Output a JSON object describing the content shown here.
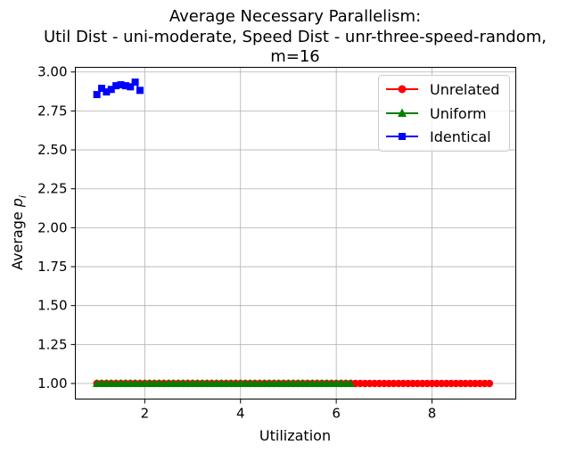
{
  "chart_data": {
    "type": "line",
    "title_lines": [
      "Average Necessary Parallelism:",
      "Util Dist - uni-moderate, Speed Dist - unr-three-speed-random,",
      "m=16"
    ],
    "xlabel": "Utilization",
    "ylabel_main": "Average ",
    "ylabel_var": "p",
    "ylabel_sub": "i",
    "xlim": [
      0.55,
      9.75
    ],
    "ylim": [
      0.9,
      3.03
    ],
    "xticks": [
      2,
      4,
      6,
      8
    ],
    "xtick_labels": [
      "2",
      "4",
      "6",
      "8"
    ],
    "yticks": [
      1.0,
      1.25,
      1.5,
      1.75,
      2.0,
      2.25,
      2.5,
      2.75,
      3.0
    ],
    "ytick_labels": [
      "1.00",
      "1.25",
      "1.50",
      "1.75",
      "2.00",
      "2.25",
      "2.50",
      "2.75",
      "3.00"
    ],
    "grid": true,
    "legend_position": "top-right",
    "series": [
      {
        "name": "Unrelated",
        "color": "#ff0000",
        "marker": "circle",
        "x_start": 1.0,
        "x_step": 0.1,
        "x_end": 9.2,
        "y_constant": 1.0
      },
      {
        "name": "Uniform",
        "color": "#008000",
        "marker": "triangle",
        "x_start": 1.0,
        "x_step": 0.1,
        "x_end": 6.3,
        "y_constant": 1.0
      },
      {
        "name": "Identical",
        "color": "#0000ff",
        "marker": "square",
        "x": [
          1.0,
          1.1,
          1.2,
          1.3,
          1.4,
          1.5,
          1.6,
          1.7,
          1.8,
          1.9
        ],
        "y": [
          2.855,
          2.895,
          2.872,
          2.888,
          2.912,
          2.918,
          2.912,
          2.905,
          2.935,
          2.882
        ]
      }
    ]
  }
}
